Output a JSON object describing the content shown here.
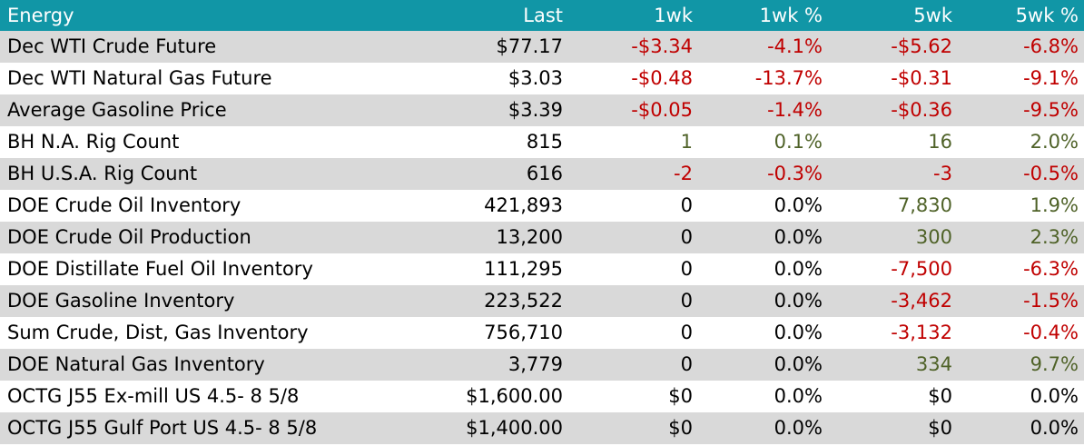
{
  "table": {
    "headers": [
      "Energy",
      "Last",
      "1wk",
      "1wk %",
      "5wk",
      "5wk %"
    ],
    "rows": [
      {
        "name": "Dec WTI Crude Future",
        "last": "$77.17",
        "wk1": "-$3.34",
        "wk1pct": "-4.1%",
        "wk5": "-$5.62",
        "wk5pct": "-6.8%",
        "wk1_sign": "neg",
        "wk1pct_sign": "neg",
        "wk5_sign": "neg",
        "wk5pct_sign": "neg"
      },
      {
        "name": "Dec WTI Natural Gas Future",
        "last": "$3.03",
        "wk1": "-$0.48",
        "wk1pct": "-13.7%",
        "wk5": "-$0.31",
        "wk5pct": "-9.1%",
        "wk1_sign": "neg",
        "wk1pct_sign": "neg",
        "wk5_sign": "neg",
        "wk5pct_sign": "neg"
      },
      {
        "name": "Average Gasoline Price",
        "last": "$3.39",
        "wk1": "-$0.05",
        "wk1pct": "-1.4%",
        "wk5": "-$0.36",
        "wk5pct": "-9.5%",
        "wk1_sign": "neg",
        "wk1pct_sign": "neg",
        "wk5_sign": "neg",
        "wk5pct_sign": "neg"
      },
      {
        "name": "BH N.A. Rig Count",
        "last": "815",
        "wk1": "1",
        "wk1pct": "0.1%",
        "wk5": "16",
        "wk5pct": "2.0%",
        "wk1_sign": "pos",
        "wk1pct_sign": "pos",
        "wk5_sign": "pos",
        "wk5pct_sign": "pos"
      },
      {
        "name": "BH U.S.A. Rig Count",
        "last": "616",
        "wk1": "-2",
        "wk1pct": "-0.3%",
        "wk5": "-3",
        "wk5pct": "-0.5%",
        "wk1_sign": "neg",
        "wk1pct_sign": "neg",
        "wk5_sign": "neg",
        "wk5pct_sign": "neg"
      },
      {
        "name": "DOE Crude Oil Inventory",
        "last": "421,893",
        "wk1": "0",
        "wk1pct": "0.0%",
        "wk5": "7,830",
        "wk5pct": "1.9%",
        "wk1_sign": "zero",
        "wk1pct_sign": "zero",
        "wk5_sign": "pos",
        "wk5pct_sign": "pos"
      },
      {
        "name": "DOE Crude Oil Production",
        "last": "13,200",
        "wk1": "0",
        "wk1pct": "0.0%",
        "wk5": "300",
        "wk5pct": "2.3%",
        "wk1_sign": "zero",
        "wk1pct_sign": "zero",
        "wk5_sign": "pos",
        "wk5pct_sign": "pos"
      },
      {
        "name": "DOE Distillate Fuel Oil Inventory",
        "last": "111,295",
        "wk1": "0",
        "wk1pct": "0.0%",
        "wk5": "-7,500",
        "wk5pct": "-6.3%",
        "wk1_sign": "zero",
        "wk1pct_sign": "zero",
        "wk5_sign": "neg",
        "wk5pct_sign": "neg"
      },
      {
        "name": "DOE Gasoline Inventory",
        "last": "223,522",
        "wk1": "0",
        "wk1pct": "0.0%",
        "wk5": "-3,462",
        "wk5pct": "-1.5%",
        "wk1_sign": "zero",
        "wk1pct_sign": "zero",
        "wk5_sign": "neg",
        "wk5pct_sign": "neg"
      },
      {
        "name": "Sum Crude, Dist, Gas Inventory",
        "last": "756,710",
        "wk1": "0",
        "wk1pct": "0.0%",
        "wk5": "-3,132",
        "wk5pct": "-0.4%",
        "wk1_sign": "zero",
        "wk1pct_sign": "zero",
        "wk5_sign": "neg",
        "wk5pct_sign": "neg"
      },
      {
        "name": "DOE Natural Gas Inventory",
        "last": "3,779",
        "wk1": "0",
        "wk1pct": "0.0%",
        "wk5": "334",
        "wk5pct": "9.7%",
        "wk1_sign": "zero",
        "wk1pct_sign": "zero",
        "wk5_sign": "pos",
        "wk5pct_sign": "pos"
      },
      {
        "name": "OCTG J55 Ex-mill US 4.5- 8 5/8",
        "last": "$1,600.00",
        "wk1": "$0",
        "wk1pct": "0.0%",
        "wk5": "$0",
        "wk5pct": "0.0%",
        "wk1_sign": "zero",
        "wk1pct_sign": "zero",
        "wk5_sign": "zero",
        "wk5pct_sign": "zero"
      },
      {
        "name": "OCTG J55 Gulf Port US 4.5- 8 5/8",
        "last": "$1,400.00",
        "wk1": "$0",
        "wk1pct": "0.0%",
        "wk5": "$0",
        "wk5pct": "0.0%",
        "wk1_sign": "zero",
        "wk1pct_sign": "zero",
        "wk5_sign": "zero",
        "wk5pct_sign": "zero"
      }
    ]
  },
  "colors": {
    "header_bg": "#1196a6",
    "header_text": "#ffffff",
    "stripe": "#d9d9d9",
    "negative": "#c00000",
    "positive": "#4f6228"
  }
}
